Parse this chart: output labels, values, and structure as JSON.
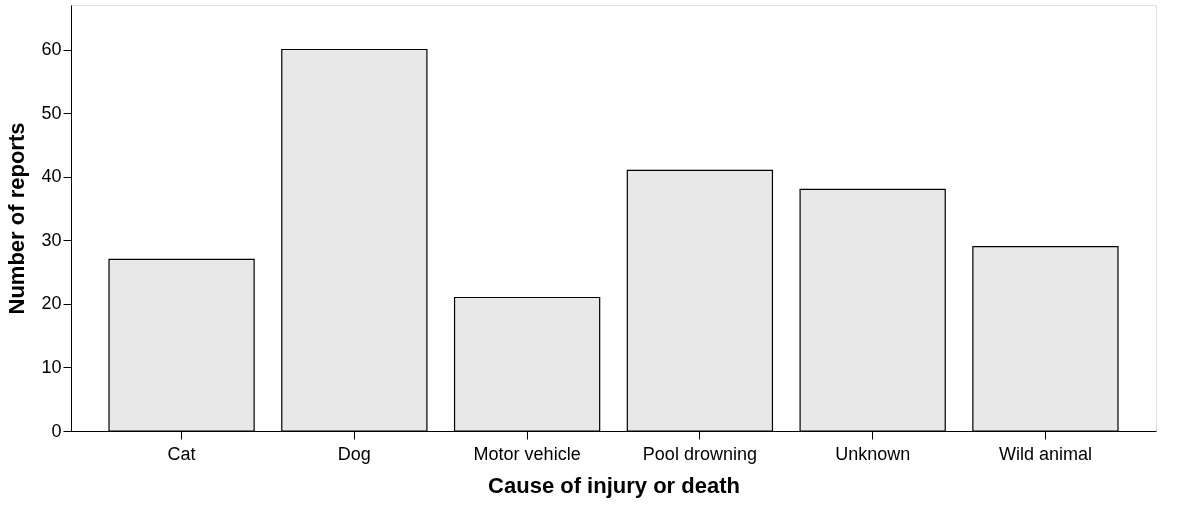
{
  "chart_data": {
    "type": "bar",
    "xlabel": "Cause of injury or death",
    "ylabel": "Number of reports",
    "categories": [
      "Cat",
      "Dog",
      "Motor vehicle",
      "Pool drowning",
      "Unknown",
      "Wild animal"
    ],
    "values": [
      27,
      60,
      21,
      41,
      38,
      29
    ],
    "color": "#e8e8e8",
    "ylim": [
      0,
      67
    ],
    "yticks": [
      0,
      10,
      20,
      30,
      40,
      50,
      60
    ],
    "grid": false
  }
}
